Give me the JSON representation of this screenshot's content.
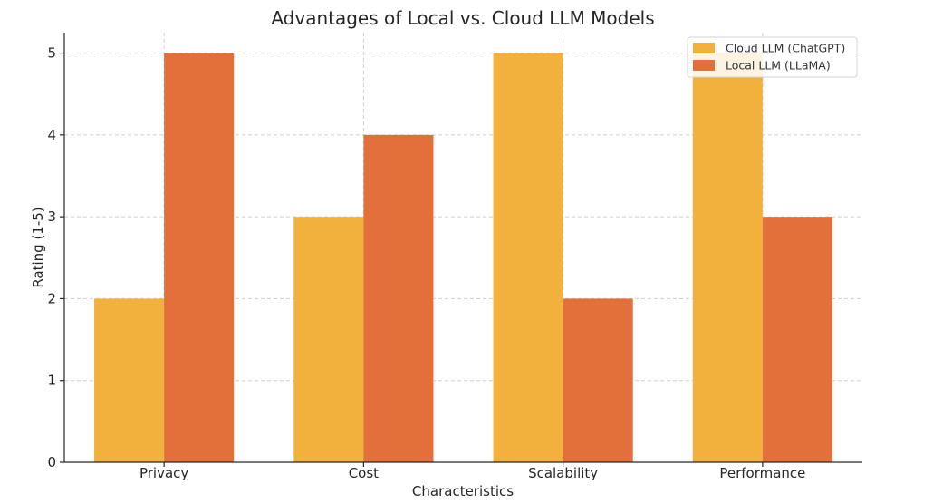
{
  "chart_data": {
    "type": "bar",
    "title": "Advantages of Local vs. Cloud LLM Models",
    "xlabel": "Characteristics",
    "ylabel": "Rating (1-5)",
    "categories": [
      "Privacy",
      "Cost",
      "Scalability",
      "Performance"
    ],
    "series": [
      {
        "name": "Cloud LLM (ChatGPT)",
        "color": "#f2b13c",
        "values": [
          2,
          3,
          5,
          5
        ]
      },
      {
        "name": "Local LLM (LLaMA)",
        "color": "#e3703a",
        "values": [
          5,
          4,
          2,
          3
        ]
      }
    ],
    "ylim": [
      0,
      5.25
    ],
    "yticks": [
      "0",
      "1",
      "2",
      "3",
      "4",
      "5"
    ],
    "grid": true,
    "legend_position": "top-right"
  }
}
